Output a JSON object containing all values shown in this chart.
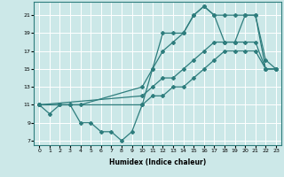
{
  "xlabel": "Humidex (Indice chaleur)",
  "ylabel": "",
  "bg_color": "#cce8e8",
  "line_color": "#2e7d7d",
  "grid_color": "#ffffff",
  "xlim": [
    -0.5,
    23.5
  ],
  "ylim": [
    6.5,
    22.5
  ],
  "xticks": [
    0,
    1,
    2,
    3,
    4,
    5,
    6,
    7,
    8,
    9,
    10,
    11,
    12,
    13,
    14,
    15,
    16,
    17,
    18,
    19,
    20,
    21,
    22,
    23
  ],
  "yticks": [
    7,
    9,
    11,
    13,
    15,
    17,
    19,
    21
  ],
  "lines": [
    {
      "x": [
        0,
        1,
        2,
        3,
        4,
        5,
        6,
        7,
        8,
        9,
        10,
        11,
        12,
        13,
        14,
        15,
        16,
        17,
        18,
        19,
        20,
        21,
        22,
        23
      ],
      "y": [
        11,
        10,
        11,
        11,
        9,
        9,
        8,
        8,
        7,
        8,
        11,
        15,
        19,
        19,
        19,
        21,
        22,
        21,
        21,
        21,
        21,
        21,
        15,
        15
      ]
    },
    {
      "x": [
        0,
        2,
        3,
        4,
        10,
        11,
        12,
        13,
        14,
        15,
        16,
        17,
        18,
        19,
        20,
        21,
        22,
        23
      ],
      "y": [
        11,
        11,
        11,
        11,
        13,
        15,
        17,
        18,
        19,
        21,
        22,
        21,
        18,
        18,
        21,
        21,
        16,
        15
      ]
    },
    {
      "x": [
        0,
        10,
        11,
        12,
        13,
        14,
        15,
        16,
        17,
        18,
        19,
        20,
        21,
        22,
        23
      ],
      "y": [
        11,
        12,
        13,
        14,
        14,
        15,
        16,
        17,
        18,
        18,
        18,
        18,
        18,
        15,
        15
      ]
    },
    {
      "x": [
        0,
        10,
        11,
        12,
        13,
        14,
        15,
        16,
        17,
        18,
        19,
        20,
        21,
        22,
        23
      ],
      "y": [
        11,
        11,
        12,
        12,
        13,
        13,
        14,
        15,
        16,
        17,
        17,
        17,
        17,
        15,
        15
      ]
    }
  ]
}
